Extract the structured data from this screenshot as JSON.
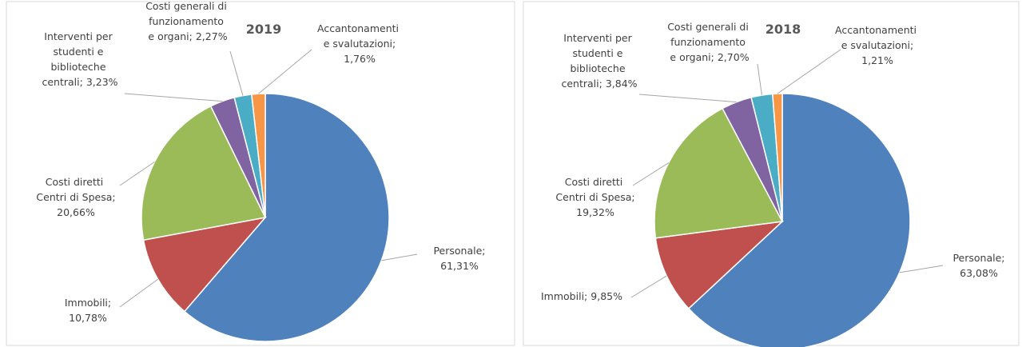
{
  "chart_data": [
    {
      "type": "pie",
      "title": "2019",
      "categories": [
        "Personale;",
        "Immobili;",
        "Costi diretti Centri di Spesa;",
        "Interventi per studenti e biblioteche centrali;",
        "Costi generali di funzionamento e organi;",
        "Accantonamenti e svalutazioni;"
      ],
      "values": [
        61.31,
        10.78,
        20.66,
        3.23,
        2.27,
        1.76
      ],
      "value_labels": [
        "61,31%",
        "10,78%",
        "20,66%",
        "3,23%",
        "2,27%",
        "1,76%"
      ],
      "colors": [
        "#4f81bd",
        "#c0504d",
        "#9bbb59",
        "#8064a2",
        "#4bacc6",
        "#f79646"
      ]
    },
    {
      "type": "pie",
      "title": "2018",
      "categories": [
        "Personale;",
        "Immobili;",
        "Costi diretti Centri di Spesa;",
        "Interventi per studenti e biblioteche centrali;",
        "Costi generali di funzionamento e organi;",
        "Accantonamenti e svalutazioni;"
      ],
      "values": [
        63.08,
        9.85,
        19.32,
        3.84,
        2.7,
        1.21
      ],
      "value_labels": [
        "63,08%",
        "9,85%",
        "19,32%",
        "3,84%",
        "2,70%",
        "1,21%"
      ],
      "colors": [
        "#4f81bd",
        "#c0504d",
        "#9bbb59",
        "#8064a2",
        "#4bacc6",
        "#f79646"
      ]
    }
  ]
}
